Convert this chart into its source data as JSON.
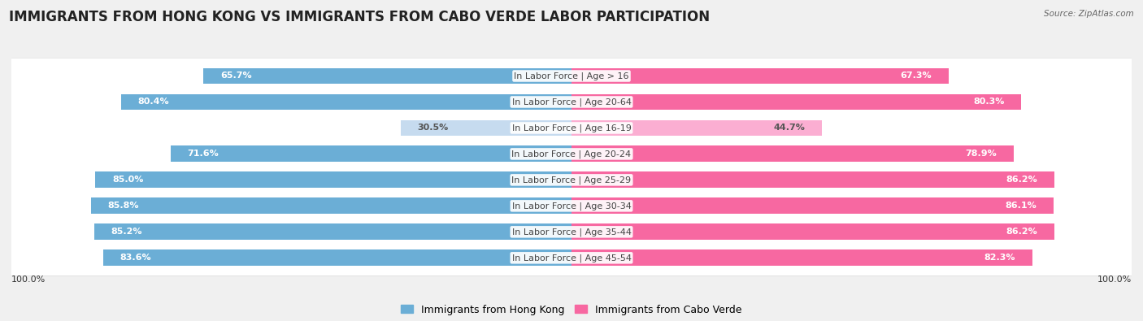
{
  "title": "IMMIGRANTS FROM HONG KONG VS IMMIGRANTS FROM CABO VERDE LABOR PARTICIPATION",
  "source": "Source: ZipAtlas.com",
  "categories": [
    "In Labor Force | Age > 16",
    "In Labor Force | Age 20-64",
    "In Labor Force | Age 16-19",
    "In Labor Force | Age 20-24",
    "In Labor Force | Age 25-29",
    "In Labor Force | Age 30-34",
    "In Labor Force | Age 35-44",
    "In Labor Force | Age 45-54"
  ],
  "hong_kong_values": [
    65.7,
    80.4,
    30.5,
    71.6,
    85.0,
    85.8,
    85.2,
    83.6
  ],
  "cabo_verde_values": [
    67.3,
    80.3,
    44.7,
    78.9,
    86.2,
    86.1,
    86.2,
    82.3
  ],
  "hong_kong_color": "#6BAED6",
  "cabo_verde_color": "#F768A1",
  "hong_kong_light_color": "#C6DBEF",
  "cabo_verde_light_color": "#FBAED2",
  "legend_hk": "Immigrants from Hong Kong",
  "legend_cv": "Immigrants from Cabo Verde",
  "bar_height": 0.62,
  "row_bg_color": "#f0f0f0",
  "row_inner_color": "#ffffff",
  "title_fontsize": 12,
  "label_fontsize": 8,
  "value_fontsize": 8,
  "footer_value": "100.0%",
  "hk_low_threshold": 50,
  "cv_low_threshold": 50
}
